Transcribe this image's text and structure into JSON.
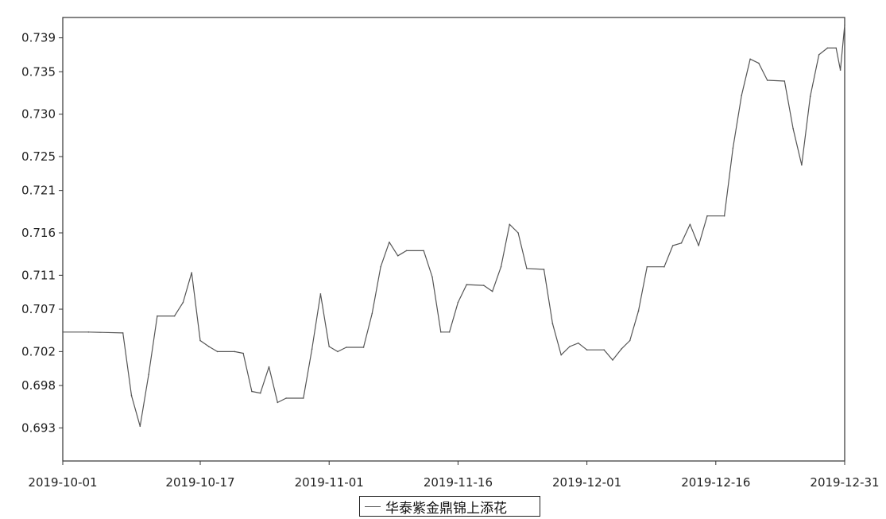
{
  "chart_data": {
    "type": "line",
    "title": "",
    "xlabel": "",
    "ylabel": "",
    "x_range": [
      "2019-10-01",
      "2019-12-31"
    ],
    "x_ticks": [
      "2019-10-01",
      "2019-10-17",
      "2019-11-01",
      "2019-11-16",
      "2019-12-01",
      "2019-12-16",
      "2019-12-31"
    ],
    "y_ticks": [
      "0.693",
      "0.698",
      "0.702",
      "0.707",
      "0.711",
      "0.716",
      "0.721",
      "0.725",
      "0.730",
      "0.735",
      "0.739"
    ],
    "ylim": [
      0.6891,
      0.7414
    ],
    "grid": false,
    "legend_position": "bottom-center",
    "line_color": "#555555",
    "series": [
      {
        "name": "华泰紫金鼎锦上添花",
        "points": [
          [
            "2019-10-01",
            0.7043
          ],
          [
            "2019-10-04",
            0.7043
          ],
          [
            "2019-10-08",
            0.7042
          ],
          [
            "2019-10-09",
            0.6968
          ],
          [
            "2019-10-10",
            0.6932
          ],
          [
            "2019-10-11",
            0.6993
          ],
          [
            "2019-10-12",
            0.7062
          ],
          [
            "2019-10-14",
            0.7062
          ],
          [
            "2019-10-15",
            0.7078
          ],
          [
            "2019-10-16",
            0.7113
          ],
          [
            "2019-10-17",
            0.7033
          ],
          [
            "2019-10-18",
            0.7026
          ],
          [
            "2019-10-19",
            0.702
          ],
          [
            "2019-10-21",
            0.702
          ],
          [
            "2019-10-22",
            0.7018
          ],
          [
            "2019-10-23",
            0.6973
          ],
          [
            "2019-10-24",
            0.6971
          ],
          [
            "2019-10-25",
            0.7002
          ],
          [
            "2019-10-26",
            0.696
          ],
          [
            "2019-10-27",
            0.6965
          ],
          [
            "2019-10-29",
            0.6965
          ],
          [
            "2019-10-30",
            0.7023
          ],
          [
            "2019-10-31",
            0.7088
          ],
          [
            "2019-11-01",
            0.7026
          ],
          [
            "2019-11-02",
            0.702
          ],
          [
            "2019-11-03",
            0.7025
          ],
          [
            "2019-11-05",
            0.7025
          ],
          [
            "2019-11-06",
            0.7065
          ],
          [
            "2019-11-07",
            0.712
          ],
          [
            "2019-11-08",
            0.7149
          ],
          [
            "2019-11-09",
            0.7133
          ],
          [
            "2019-11-10",
            0.7139
          ],
          [
            "2019-11-12",
            0.7139
          ],
          [
            "2019-11-13",
            0.7108
          ],
          [
            "2019-11-14",
            0.7043
          ],
          [
            "2019-11-15",
            0.7043
          ],
          [
            "2019-11-16",
            0.7078
          ],
          [
            "2019-11-17",
            0.7099
          ],
          [
            "2019-11-19",
            0.7098
          ],
          [
            "2019-11-20",
            0.7091
          ],
          [
            "2019-11-21",
            0.712
          ],
          [
            "2019-11-22",
            0.717
          ],
          [
            "2019-11-23",
            0.716
          ],
          [
            "2019-11-24",
            0.7118
          ],
          [
            "2019-11-26",
            0.7117
          ],
          [
            "2019-11-27",
            0.7053
          ],
          [
            "2019-11-28",
            0.7016
          ],
          [
            "2019-11-29",
            0.7026
          ],
          [
            "2019-11-30",
            0.703
          ],
          [
            "2019-12-01",
            0.7022
          ],
          [
            "2019-12-03",
            0.7022
          ],
          [
            "2019-12-04",
            0.701
          ],
          [
            "2019-12-05",
            0.7023
          ],
          [
            "2019-12-06",
            0.7033
          ],
          [
            "2019-12-07",
            0.7068
          ],
          [
            "2019-12-08",
            0.712
          ],
          [
            "2019-12-10",
            0.712
          ],
          [
            "2019-12-11",
            0.7145
          ],
          [
            "2019-12-12",
            0.7148
          ],
          [
            "2019-12-13",
            0.717
          ],
          [
            "2019-12-14",
            0.7145
          ],
          [
            "2019-12-15",
            0.718
          ],
          [
            "2019-12-17",
            0.718
          ],
          [
            "2019-12-18",
            0.726
          ],
          [
            "2019-12-19",
            0.7322
          ],
          [
            "2019-12-20",
            0.7365
          ],
          [
            "2019-12-21",
            0.736
          ],
          [
            "2019-12-22",
            0.734
          ],
          [
            "2019-12-24",
            0.7339
          ],
          [
            "2019-12-25",
            0.7283
          ],
          [
            "2019-12-26",
            0.724
          ],
          [
            "2019-12-27",
            0.7321
          ],
          [
            "2019-12-28",
            0.737
          ],
          [
            "2019-12-29",
            0.7378
          ],
          [
            "2019-12-30",
            0.7378
          ],
          [
            "2019-12-30T12:00",
            0.7352
          ],
          [
            "2019-12-31",
            0.7405
          ]
        ]
      }
    ]
  }
}
